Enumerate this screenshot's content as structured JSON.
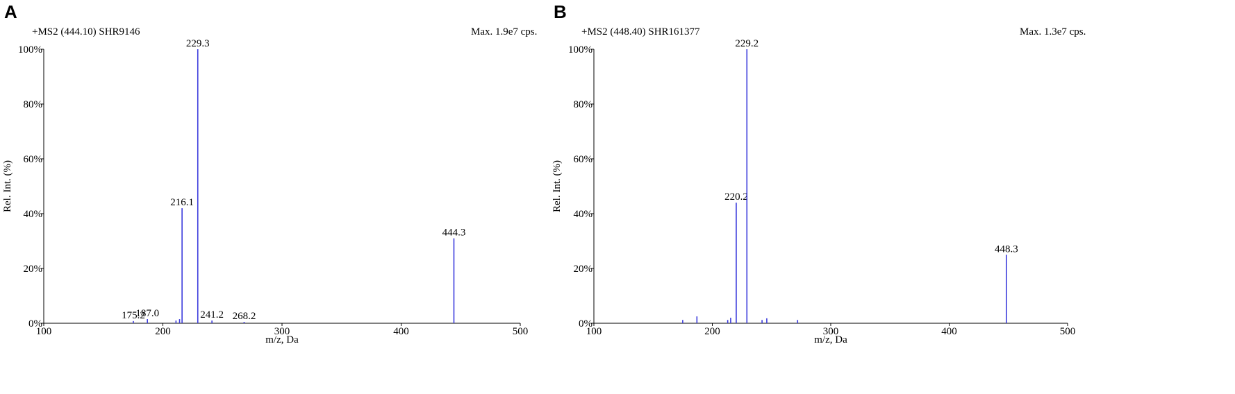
{
  "panels": [
    {
      "letter": "A",
      "header_left": "+MS2 (444.10) SHR9146",
      "header_right": "Max. 1.9e7 cps."
    },
    {
      "letter": "B",
      "header_left": "+MS2 (448.40)  SHR161377",
      "header_right": "Max. 1.3e7 cps."
    }
  ],
  "colors": {
    "peak": "#3b3bdc",
    "axis": "#000000"
  },
  "chart_data": [
    {
      "type": "bar",
      "title": "+MS2 (444.10) SHR9146",
      "xlabel": "m/z, Da",
      "ylabel": "Rel. Int. (%)",
      "xlim": [
        100,
        500
      ],
      "ylim": [
        0,
        100
      ],
      "x_ticks": [
        "100",
        "200",
        "300",
        "400",
        "500"
      ],
      "y_ticks": [
        "0%",
        "20%",
        "40%",
        "60%",
        "80%",
        "100%"
      ],
      "peaks": [
        {
          "mz": 175.2,
          "intensity": 0.8,
          "label": "175.2"
        },
        {
          "mz": 187.0,
          "intensity": 1.5,
          "label": "187.0"
        },
        {
          "mz": 211.0,
          "intensity": 1.0,
          "label": ""
        },
        {
          "mz": 214.0,
          "intensity": 1.5,
          "label": ""
        },
        {
          "mz": 216.1,
          "intensity": 42,
          "label": "216.1"
        },
        {
          "mz": 229.3,
          "intensity": 100,
          "label": "229.3"
        },
        {
          "mz": 241.2,
          "intensity": 1.0,
          "label": "241.2"
        },
        {
          "mz": 268.2,
          "intensity": 0.5,
          "label": "268.2"
        },
        {
          "mz": 444.3,
          "intensity": 31,
          "label": "444.3"
        }
      ]
    },
    {
      "type": "bar",
      "title": "+MS2 (448.40)  SHR161377",
      "xlabel": "m/z, Da",
      "ylabel": "Rel. Int. (%)",
      "xlim": [
        100,
        500
      ],
      "ylim": [
        0,
        100
      ],
      "x_ticks": [
        "100",
        "200",
        "300",
        "400",
        "500"
      ],
      "y_ticks": [
        "0%",
        "20%",
        "40%",
        "60%",
        "80%",
        "100%"
      ],
      "peaks": [
        {
          "mz": 175.0,
          "intensity": 1.2,
          "label": ""
        },
        {
          "mz": 187.0,
          "intensity": 2.5,
          "label": ""
        },
        {
          "mz": 213.0,
          "intensity": 1.2,
          "label": ""
        },
        {
          "mz": 215.5,
          "intensity": 2.0,
          "label": ""
        },
        {
          "mz": 220.2,
          "intensity": 44,
          "label": "220.2"
        },
        {
          "mz": 229.2,
          "intensity": 100,
          "label": "229.2"
        },
        {
          "mz": 242.0,
          "intensity": 1.2,
          "label": ""
        },
        {
          "mz": 246.0,
          "intensity": 1.8,
          "label": ""
        },
        {
          "mz": 272.0,
          "intensity": 1.2,
          "label": ""
        },
        {
          "mz": 448.3,
          "intensity": 25,
          "label": "448.3"
        }
      ]
    }
  ]
}
